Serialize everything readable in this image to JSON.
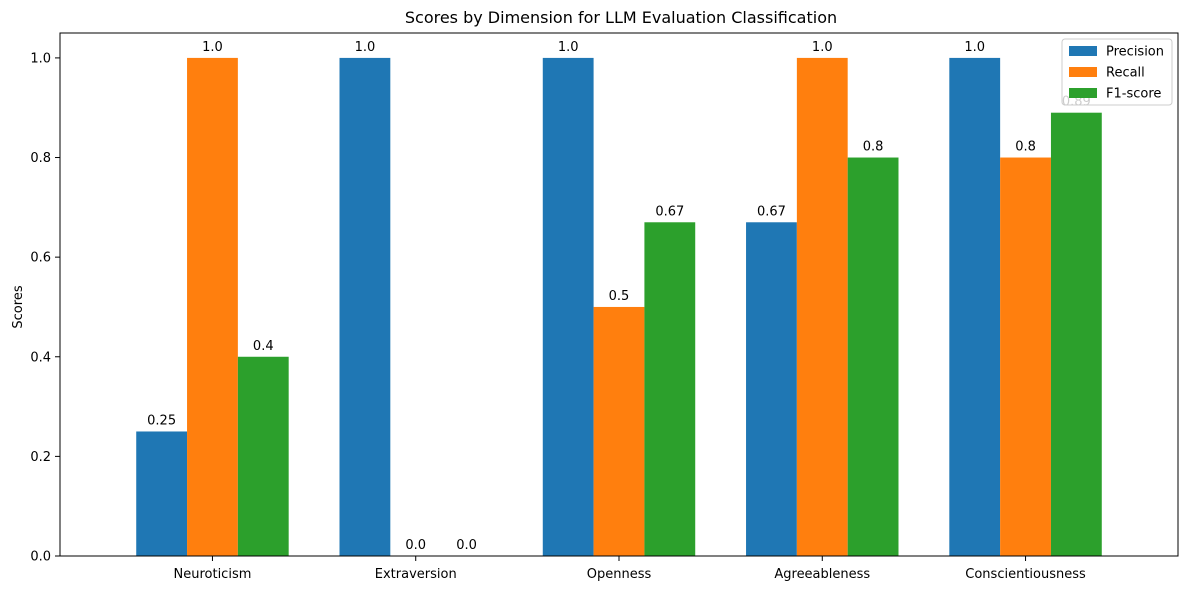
{
  "chart_data": {
    "type": "bar",
    "title": "Scores by Dimension for LLM Evaluation Classification",
    "xlabel": "",
    "ylabel": "Scores",
    "ylim": [
      0,
      1.05
    ],
    "yticks": [
      "0.0",
      "0.2",
      "0.4",
      "0.6",
      "0.8",
      "1.0"
    ],
    "categories": [
      "Neuroticism",
      "Extraversion",
      "Openness",
      "Agreeableness",
      "Conscientiousness"
    ],
    "series": [
      {
        "name": "Precision",
        "color": "#1f77b4",
        "values": [
          0.25,
          1.0,
          1.0,
          0.67,
          1.0
        ],
        "labels": [
          "0.25",
          "1.0",
          "1.0",
          "0.67",
          "1.0"
        ]
      },
      {
        "name": "Recall",
        "color": "#ff7f0e",
        "values": [
          1.0,
          0.0,
          0.5,
          1.0,
          0.8
        ],
        "labels": [
          "1.0",
          "0.0",
          "0.5",
          "1.0",
          "0.8"
        ]
      },
      {
        "name": "F1-score",
        "color": "#2ca02c",
        "values": [
          0.4,
          0.0,
          0.67,
          0.8,
          0.89
        ],
        "labels": [
          "0.4",
          "0.0",
          "0.67",
          "0.8",
          "0.89"
        ]
      }
    ],
    "legend_position": "top-right",
    "grid": false
  }
}
